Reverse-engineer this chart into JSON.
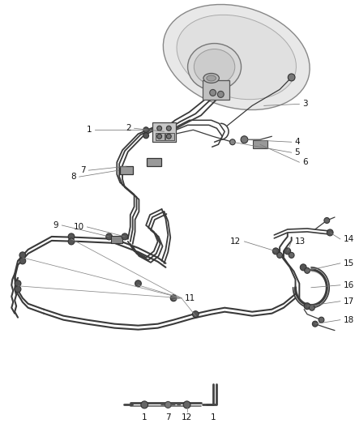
{
  "bg_color": "#ffffff",
  "line_color": "#3a3a3a",
  "label_color": "#222222",
  "figsize": [
    4.38,
    5.33
  ],
  "dpi": 100,
  "lw_tube": 1.6,
  "lw_thin": 0.9,
  "lw_leader": 0.6,
  "font_size": 7.5,
  "clip_color": "#555555",
  "component_color": "#666666"
}
